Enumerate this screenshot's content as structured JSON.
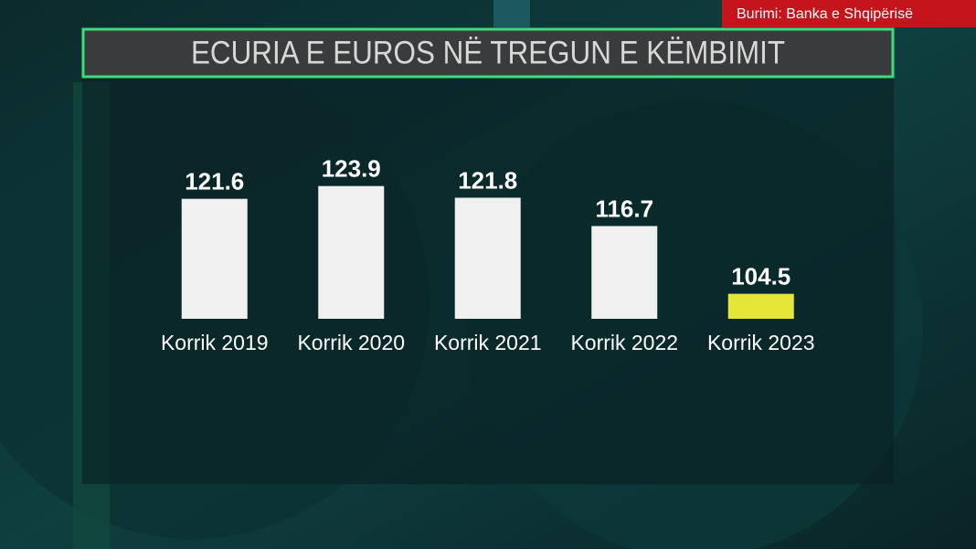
{
  "source": "Burimi: Banka e Shqipërisë",
  "chart_data": {
    "type": "bar",
    "title": "ECURIA E EUROS NË TREGUN E KËMBIMIT",
    "categories": [
      "Korrik 2019",
      "Korrik 2020",
      "Korrik 2021",
      "Korrik 2022",
      "Korrik 2023"
    ],
    "values": [
      121.6,
      123.9,
      121.8,
      116.7,
      104.5
    ],
    "colors": [
      "#f0f0f0",
      "#f0f0f0",
      "#f0f0f0",
      "#f0f0f0",
      "#e6e639"
    ],
    "ylim": [
      100,
      125
    ]
  }
}
